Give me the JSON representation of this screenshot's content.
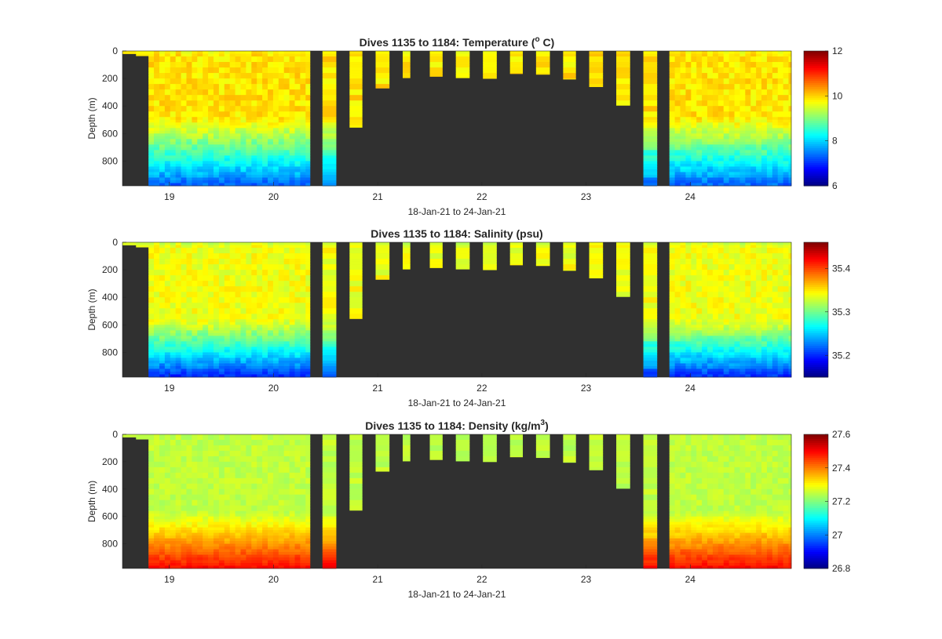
{
  "chart_data": [
    {
      "type": "heatmap",
      "title": "Dives 1135 to 1184: Temperature (",
      "title_sup": "o",
      "title_end": " C)",
      "xlabel": "18-Jan-21 to 24-Jan-21",
      "ylabel": "Depth (m)",
      "xlim": [
        18.55,
        24.97
      ],
      "ylim": [
        980,
        0
      ],
      "yticks": [
        "0",
        "200",
        "400",
        "600",
        "800"
      ],
      "xticks": [
        "19",
        "20",
        "21",
        "22",
        "23",
        "24"
      ],
      "colorbar": {
        "range": [
          6,
          12
        ],
        "ticks": [
          "6",
          "8",
          "10",
          "12"
        ]
      },
      "profile": {
        "surface": 9.8,
        "upper": 9.9,
        "thermocline_depth": 480,
        "deep": 7.3,
        "variability": 0.25
      }
    },
    {
      "type": "heatmap",
      "title": "Dives 1135 to 1184: Salinity (psu)",
      "title_sup": "",
      "title_end": "",
      "xlabel": "18-Jan-21 to 24-Jan-21",
      "ylabel": "Depth (m)",
      "xlim": [
        18.55,
        24.97
      ],
      "ylim": [
        980,
        0
      ],
      "yticks": [
        "0",
        "200",
        "400",
        "600",
        "800"
      ],
      "xticks": [
        "19",
        "20",
        "21",
        "22",
        "23",
        "24"
      ],
      "colorbar": {
        "range": [
          35.15,
          35.46
        ],
        "ticks": [
          "35.2",
          "35.3",
          "35.4"
        ]
      },
      "profile": {
        "surface": 35.33,
        "upper": 35.34,
        "thermocline_depth": 560,
        "deep": 35.2,
        "variability": 0.012
      }
    },
    {
      "type": "heatmap",
      "title": "Dives 1135 to 1184: Density (kg/m",
      "title_sup": "3",
      "title_end": ")",
      "xlabel": "18-Jan-21 to 24-Jan-21",
      "ylabel": "Depth (m)",
      "xlim": [
        18.55,
        24.97
      ],
      "ylim": [
        980,
        0
      ],
      "yticks": [
        "0",
        "200",
        "400",
        "600",
        "800"
      ],
      "xticks": [
        "19",
        "20",
        "21",
        "22",
        "23",
        "24"
      ],
      "colorbar": {
        "range": [
          26.8,
          27.6
        ],
        "ticks": [
          "26.8",
          "27",
          "27.2",
          "27.4",
          "27.6"
        ]
      },
      "profile": {
        "surface": 27.25,
        "upper": 27.25,
        "thermocline_depth": 560,
        "deep": 27.5,
        "variability": 0.02
      }
    }
  ],
  "dives": {
    "continuous_segments": [
      {
        "start": 18.8,
        "end": 20.35,
        "max_depth": 980
      },
      {
        "start": 23.8,
        "end": 24.97,
        "max_depth": 980
      }
    ],
    "isolated": [
      {
        "start": 18.55,
        "end": 18.68,
        "max_depth": 20
      },
      {
        "start": 18.68,
        "end": 18.8,
        "max_depth": 35
      },
      {
        "start": 20.47,
        "end": 20.6,
        "max_depth": 980
      },
      {
        "start": 20.73,
        "end": 20.85,
        "max_depth": 555
      },
      {
        "start": 20.98,
        "end": 21.11,
        "max_depth": 270
      },
      {
        "start": 21.24,
        "end": 21.31,
        "max_depth": 195
      },
      {
        "start": 21.5,
        "end": 21.62,
        "max_depth": 185
      },
      {
        "start": 21.75,
        "end": 21.88,
        "max_depth": 195
      },
      {
        "start": 22.01,
        "end": 22.14,
        "max_depth": 200
      },
      {
        "start": 22.27,
        "end": 22.39,
        "max_depth": 165
      },
      {
        "start": 22.52,
        "end": 22.65,
        "max_depth": 170
      },
      {
        "start": 22.78,
        "end": 22.9,
        "max_depth": 205
      },
      {
        "start": 23.03,
        "end": 23.16,
        "max_depth": 260
      },
      {
        "start": 23.29,
        "end": 23.42,
        "max_depth": 395
      },
      {
        "start": 23.55,
        "end": 23.68,
        "max_depth": 980
      }
    ]
  },
  "colors": {
    "no_data": "#303030",
    "axis": "#262626"
  }
}
